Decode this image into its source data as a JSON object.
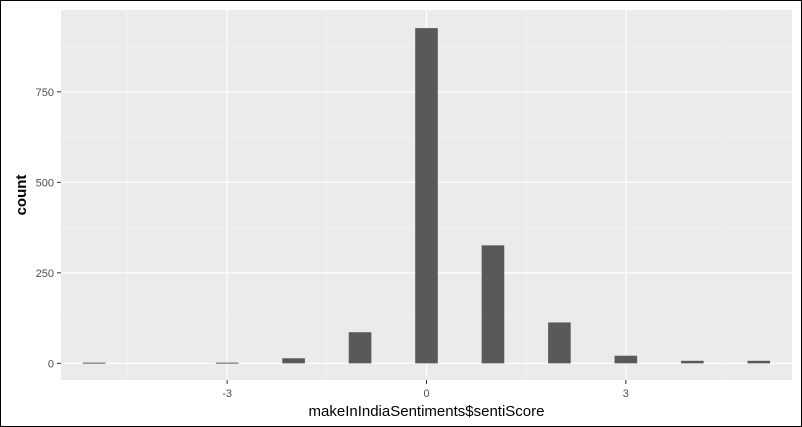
{
  "chart_data": {
    "type": "bar",
    "title": "",
    "xlabel": "makeInIndiaSentiments$sentiScore",
    "ylabel": "count",
    "x": [
      -5,
      -4,
      -3,
      -2,
      -1,
      0,
      1,
      2,
      3,
      4,
      5
    ],
    "values": [
      2,
      0,
      2,
      14,
      86,
      926,
      326,
      113,
      21,
      7,
      7
    ],
    "xlim": [
      -5.5,
      5.5
    ],
    "ylim": [
      -46,
      976
    ],
    "x_ticks": [
      -3,
      0,
      3
    ],
    "x_tick_labels": [
      "-3",
      "0",
      "3"
    ],
    "y_ticks": [
      0,
      250,
      500,
      750
    ],
    "y_tick_labels": [
      "0",
      "250",
      "500",
      "750"
    ],
    "grid": true,
    "legend": "none",
    "colors": {
      "panel_background": "#ebebeb",
      "grid_major": "#ffffff",
      "grid_minor": "#f5f5f5",
      "bar_fill": "#595959",
      "tick_label": "#4d4d4d"
    }
  }
}
